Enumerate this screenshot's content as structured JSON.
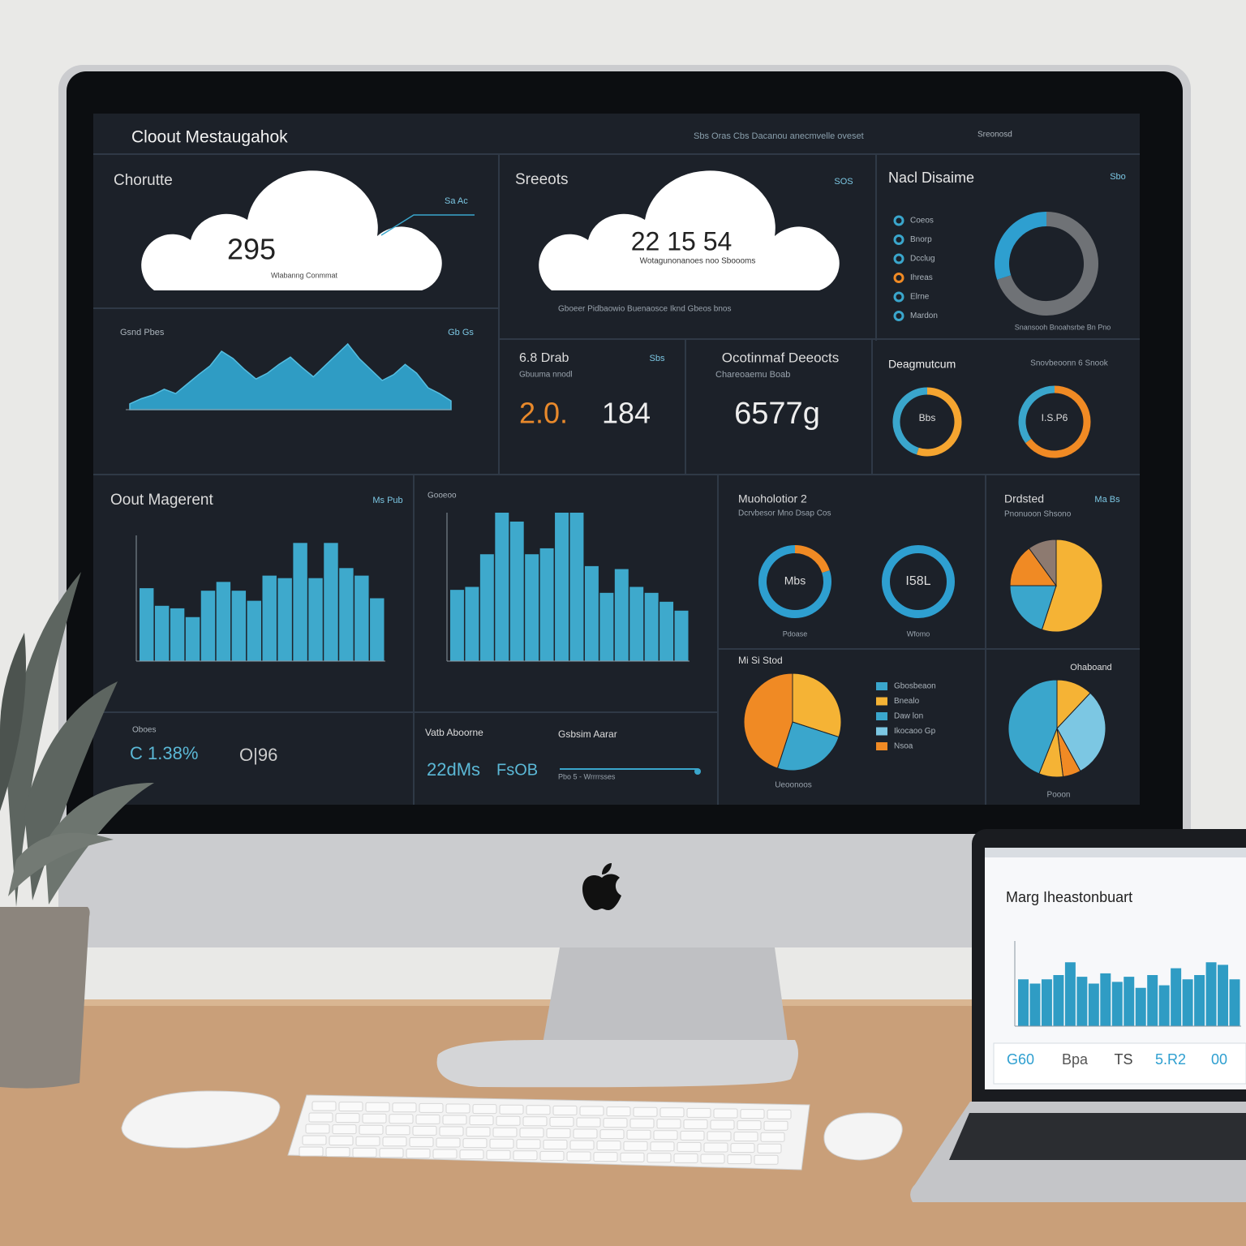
{
  "screen": {
    "labels": {
      "title": "Cloout Mestaugahok",
      "nav": "Sbs Oras   Cbs Dacanou anecmvelle oveset",
      "user": "Sreonosd",
      "p1_title": "Chorutte",
      "p1_tag": "Sa Ac",
      "p1_value": "295",
      "p1_caption": "Wlabanng Conmmat",
      "p2_title": "Sreeots",
      "p2_tag": "SOS",
      "p2_value": "22 15 54",
      "p2_caption": "Wotagunonanoes noo Sboooms",
      "p2_foot": "Gboeer Pidbaowio    Buenaosce    Iknd    Gbeos bnos",
      "p3_title": "Nacl Disaime",
      "p3_tag": "Sbo",
      "p3_caption": "Snansooh Bnoahsrbe Bn Pno",
      "area_title": "Gsnd Pbes",
      "area_tag": "Gb Gs",
      "stat1_title": "6.8 Drab",
      "stat1_sub": "Gbuuma nnodl",
      "stat1_tag": "Sbs",
      "stat1_value_a": "2.0.",
      "stat1_value_b": "184",
      "stat2_title": "Ocotinmaf Deeocts",
      "stat2_sub": "Chareoaemu   Boab",
      "stat2_value": "6577g",
      "gauge_title": "Deagmutcum",
      "gauge_sub": "Snovbeoonn 6 Snook",
      "gauge1": "Bbs",
      "gauge2": "I.S.P6",
      "bars_left_title": "Oout Magerent",
      "bars_left_tag": "Ms Pub",
      "bars_mid_title": "Gooeoo",
      "rings_title": "Muoholotior 2",
      "rings_sub": "Dcrvbesor Mno Dsap Cos",
      "ring1": "Mbs",
      "ring2": "I58L",
      "ring1_cap": "Pdoase",
      "ring2_cap": "Wfomo",
      "pie1_title": "Drdsted",
      "pie1_tag": "Ma Bs",
      "pie1_sub": "Pnonuoon Shsono",
      "b1_title": "Oboes",
      "b1_value": "C 1.38%",
      "b2_value": "O|96",
      "b3_title": "Vatb Aboorne",
      "b3_value_a": "22dMs",
      "b3_value_b": "FsOB",
      "b4_title": "Gsbsim Aarar",
      "b4_sub": "Pbo 5 - Wrrrrsses",
      "pie2_title": "Mi Si Stod",
      "pie2_cap": "Ueoonoos",
      "pie3_title": "Ohaboand",
      "pie3_cap": "Pooon",
      "laptop_title": "Marg Iheastonbuart"
    },
    "legend_a": [
      "Coeos",
      "Bnorp",
      "Dcclug",
      "Ihreas",
      "Elrne",
      "Mardon"
    ],
    "legend_b": {
      "labels": [
        "Gbosbeaon",
        "Bnealo",
        "Daw lon",
        "Ikocaoo Gp",
        "Nsoa"
      ],
      "colors": [
        "#3aa6cc",
        "#f5b335",
        "#3aa6cc",
        "#7cc7e3",
        "#f08a24"
      ]
    },
    "laptop_stats": [
      "G60",
      "Bpa",
      "TS",
      "5.R2",
      "00"
    ]
  },
  "charts": {
    "area": {
      "color": "#2f9cc4",
      "values": [
        8,
        15,
        20,
        28,
        22,
        35,
        48,
        60,
        80,
        70,
        55,
        42,
        50,
        62,
        72,
        58,
        45,
        60,
        75,
        90,
        70,
        55,
        40,
        48,
        62,
        50,
        30,
        22,
        12
      ]
    },
    "bars_left": {
      "color": "#3ea9cc",
      "values": [
        58,
        44,
        42,
        35,
        56,
        63,
        56,
        48,
        68,
        66,
        94,
        66,
        94,
        74,
        68,
        50
      ]
    },
    "bars_mid": {
      "color": "#3ea9cc",
      "values": [
        48,
        50,
        72,
        100,
        94,
        72,
        76,
        100,
        100,
        64,
        46,
        62,
        50,
        46,
        40,
        34
      ]
    },
    "bars_laptop": {
      "color": "#2f9cc4",
      "values": [
        55,
        50,
        55,
        60,
        75,
        58,
        50,
        62,
        52,
        58,
        45,
        60,
        48,
        68,
        55,
        60,
        75,
        72,
        55
      ]
    },
    "rings": [
      {
        "values": [
          70,
          30
        ],
        "colors": [
          "#6f7276",
          "#2e9fd0"
        ]
      },
      {
        "values": [
          55,
          45
        ],
        "colors": [
          "#f5a530",
          "#3aa6cc"
        ]
      },
      {
        "values": [
          65,
          35
        ],
        "colors": [
          "#f08a24",
          "#3aa6cc"
        ]
      },
      {
        "values": [
          20,
          80
        ],
        "colors": [
          "#f08a24",
          "#2e9fd0"
        ]
      },
      {
        "values": [
          100
        ],
        "colors": [
          "#2e9fd0"
        ]
      }
    ],
    "pies": [
      {
        "values": [
          55,
          20,
          15,
          10
        ],
        "colors": [
          "#f5b335",
          "#3aa6cc",
          "#f08a24",
          "#8d7a70"
        ]
      },
      {
        "values": [
          30,
          25,
          45
        ],
        "colors": [
          "#f5b335",
          "#3aa6cc",
          "#f08a24"
        ]
      },
      {
        "values": [
          12,
          30,
          6,
          8,
          44
        ],
        "colors": [
          "#f5b335",
          "#7cc7e3",
          "#f08a24",
          "#f5b335",
          "#3aa6cc"
        ]
      }
    ]
  }
}
